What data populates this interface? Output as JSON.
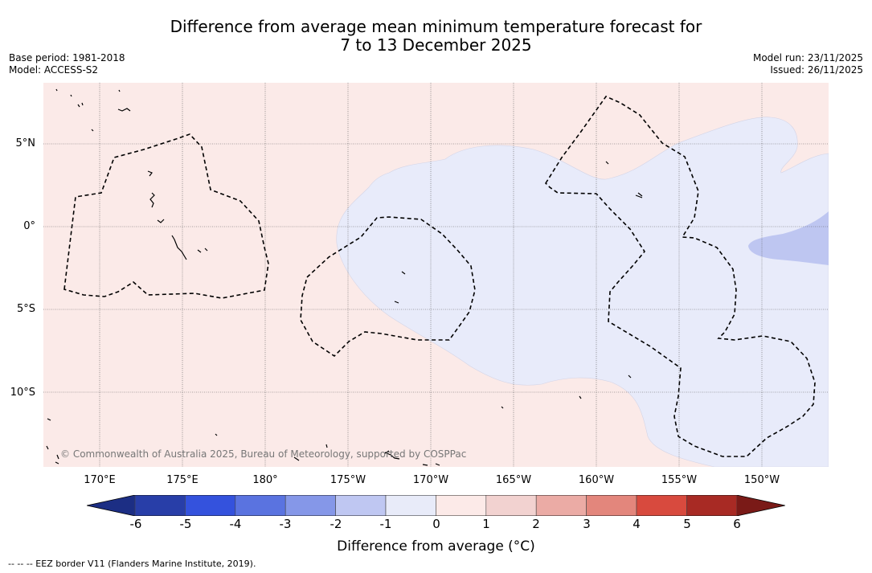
{
  "title": {
    "line1": "Difference from average mean minimum temperature forecast for",
    "line2": "7 to 13 December 2025"
  },
  "meta": {
    "base_period": "Base period: 1981-2018",
    "model": "Model: ACCESS-S2",
    "model_run": "Model run: 23/11/2025",
    "issued": "Issued: 26/11/2025"
  },
  "map": {
    "lat_labels": [
      "5°N",
      "0°",
      "5°S",
      "10°S"
    ],
    "lon_labels": [
      "170°E",
      "175°E",
      "180°",
      "175°W",
      "170°W",
      "165°W",
      "160°W",
      "155°W",
      "150°W"
    ],
    "copyright": "© Commonwealth of Australia 2025, Bureau of Meteorology, supported by COSPPac"
  },
  "colorbar": {
    "ticks": [
      "-6",
      "-5",
      "-4",
      "-3",
      "-2",
      "-1",
      "0",
      "1",
      "2",
      "3",
      "4",
      "5",
      "6"
    ],
    "colors": [
      "#283ea8",
      "#3452dd",
      "#5a73e0",
      "#8597e8",
      "#bfc7f2",
      "#e8ebf9",
      "#fceae8",
      "#f2d2d0",
      "#ebaba5",
      "#e3867c",
      "#d84a3e",
      "#a82a24"
    ],
    "under_color": "#1c2e84",
    "over_color": "#7a1a17",
    "label": "Difference from average (°C)"
  },
  "legend": {
    "eez": "--  --  -- EEZ border V11 (Flanders Marine Institute, 2019)."
  },
  "field_colors": {
    "background": "#fbeae8",
    "minus_one": "#e8ebfa",
    "minus_two": "#bec6f1"
  }
}
